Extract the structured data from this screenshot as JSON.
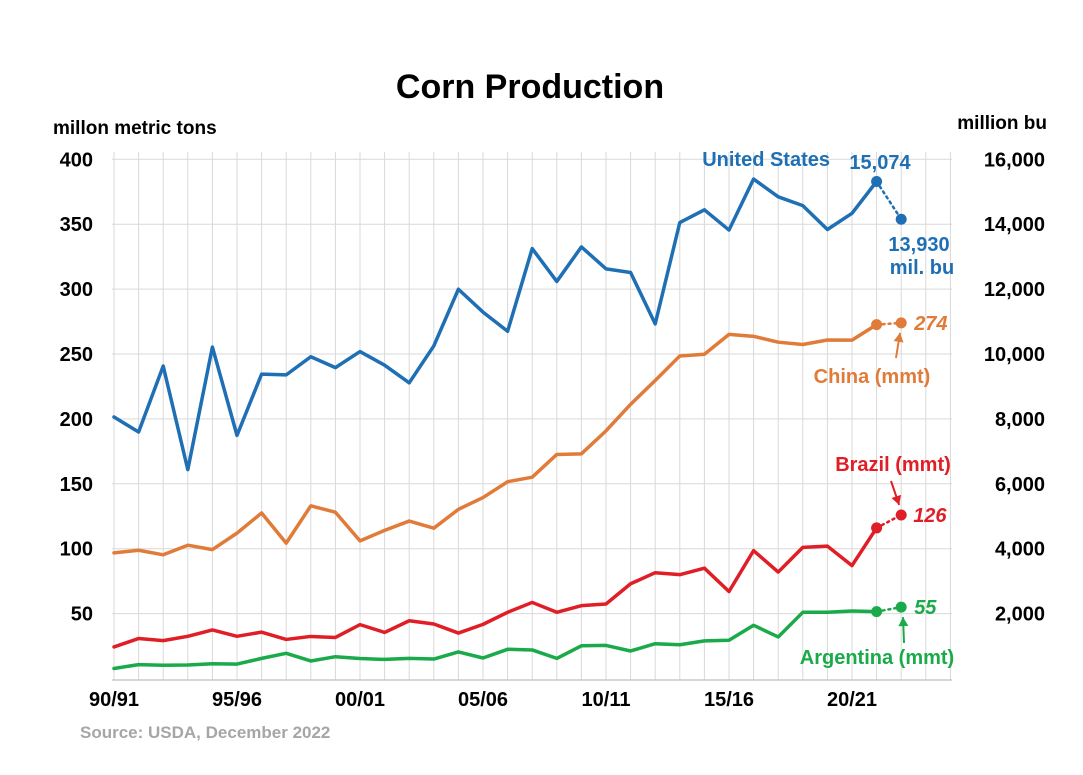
{
  "chart_data": {
    "type": "line",
    "title": "Corn Production",
    "ylabel_left": "millon metric tons",
    "ylabel_right": "million bu",
    "ylim_left": [
      0,
      400
    ],
    "ylim_right": [
      0,
      16000
    ],
    "yticks_left": [
      "400",
      "350",
      "300",
      "250",
      "200",
      "150",
      "100",
      "50"
    ],
    "yticks_right": [
      "16,000",
      "14,000",
      "12,000",
      "10,000",
      "8,000",
      "6,000",
      "4,000",
      "2,000"
    ],
    "x_start_year": 1990,
    "x_labels": [
      "90/91",
      "95/96",
      "00/01",
      "05/06",
      "10/11",
      "15/16",
      "20/21"
    ],
    "grid": true,
    "source": "Source: USDA, December 2022",
    "series": [
      {
        "name": "United States",
        "color": "#1f6fb5",
        "values": [
          201.5,
          189.9,
          240.7,
          160.9,
          255.3,
          187.3,
          234.5,
          233.9,
          247.9,
          239.5,
          251.9,
          241.4,
          227.8,
          256.2,
          299.9,
          282.3,
          267.5,
          331.2,
          305.9,
          332.5,
          315.6,
          312.8,
          273.2,
          351.3,
          361.1,
          345.5,
          384.8,
          371.1,
          364.3,
          345.9,
          358.4,
          382.9
        ],
        "projection": 353.8,
        "label": "United States",
        "value_label_prev": "15,074",
        "value_label_proj": "13,930",
        "unit_label": "mil. bu"
      },
      {
        "name": "China (mmt)",
        "color": "#e07b39",
        "values": [
          96.8,
          98.8,
          95.3,
          102.7,
          99.3,
          112.0,
          127.5,
          104.3,
          133.0,
          128.1,
          106.0,
          114.1,
          121.3,
          115.8,
          130.3,
          139.4,
          151.6,
          155.1,
          172.6,
          173.1,
          190.8,
          211.2,
          229.6,
          248.5,
          249.8,
          265.1,
          263.6,
          259.1,
          257.3,
          260.8,
          260.7,
          272.6
        ],
        "projection": 274,
        "label": "China (mmt)",
        "value_label": "274"
      },
      {
        "name": "Brazil (mmt)",
        "color": "#e01e26",
        "values": [
          24.3,
          30.8,
          29.2,
          32.5,
          37.4,
          32.5,
          35.7,
          30.1,
          32.4,
          31.6,
          41.5,
          35.5,
          44.5,
          42.0,
          35.0,
          41.7,
          51.0,
          58.6,
          51.0,
          56.1,
          57.4,
          73.0,
          81.5,
          80.0,
          85.0,
          67.0,
          98.5,
          82.0,
          101.0,
          102.0,
          87.0,
          116.0
        ],
        "projection": 126,
        "label": "Brazil (mmt)",
        "value_label": "126"
      },
      {
        "name": "Argentina (mmt)",
        "color": "#1aaa4a",
        "values": [
          7.7,
          10.7,
          10.2,
          10.4,
          11.4,
          11.1,
          15.5,
          19.4,
          13.5,
          16.8,
          15.4,
          14.7,
          15.5,
          15.0,
          20.5,
          15.8,
          22.5,
          22.0,
          15.5,
          25.2,
          25.5,
          21.2,
          26.8,
          26.0,
          29.0,
          29.5,
          41.0,
          32.0,
          51.0,
          51.0,
          52.0,
          51.5
        ],
        "projection": 55,
        "label": "Argentina (mmt)",
        "value_label": "55"
      }
    ]
  }
}
